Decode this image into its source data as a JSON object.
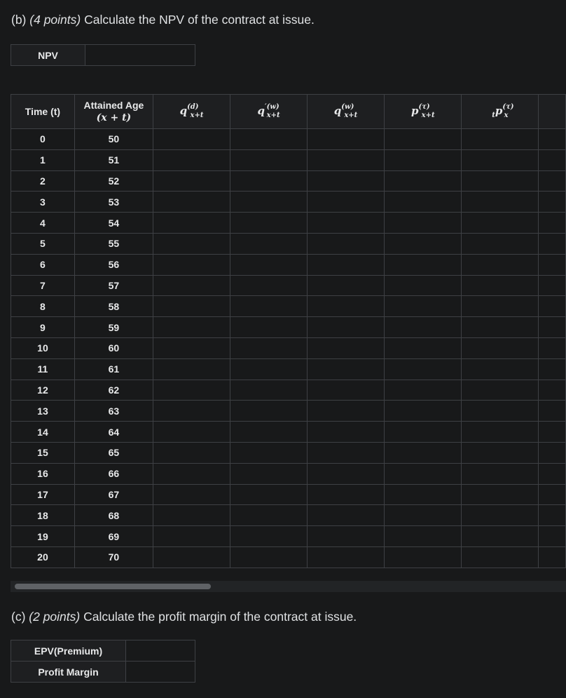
{
  "part_b": {
    "label": "(b)",
    "points": "(4 points)",
    "text": "Calculate the NPV of the contract at issue."
  },
  "npv_table": {
    "header": "NPV",
    "value": ""
  },
  "main_table": {
    "headers": {
      "time_label": "Time (t)",
      "age_line1": "Attained Age",
      "age_line2": "(x + t)",
      "col3": {
        "base": "q",
        "sup": "(d)",
        "sub": "x+t"
      },
      "col4": {
        "base": "q",
        "sup": "′(w)",
        "sub": "x+t"
      },
      "col5": {
        "base": "q",
        "sup": "(w)",
        "sub": "x+t"
      },
      "col6": {
        "base": "p",
        "sup": "(τ)",
        "sub": "x+t"
      },
      "col7": {
        "pre": "t",
        "base": "p",
        "sup": "(τ)",
        "sub": "x"
      }
    },
    "rows": [
      {
        "t": "0",
        "age": "50"
      },
      {
        "t": "1",
        "age": "51"
      },
      {
        "t": "2",
        "age": "52"
      },
      {
        "t": "3",
        "age": "53"
      },
      {
        "t": "4",
        "age": "54"
      },
      {
        "t": "5",
        "age": "55"
      },
      {
        "t": "6",
        "age": "56"
      },
      {
        "t": "7",
        "age": "57"
      },
      {
        "t": "8",
        "age": "58"
      },
      {
        "t": "9",
        "age": "59"
      },
      {
        "t": "10",
        "age": "60"
      },
      {
        "t": "11",
        "age": "61"
      },
      {
        "t": "12",
        "age": "62"
      },
      {
        "t": "13",
        "age": "63"
      },
      {
        "t": "14",
        "age": "64"
      },
      {
        "t": "15",
        "age": "65"
      },
      {
        "t": "16",
        "age": "66"
      },
      {
        "t": "17",
        "age": "67"
      },
      {
        "t": "18",
        "age": "68"
      },
      {
        "t": "19",
        "age": "69"
      },
      {
        "t": "20",
        "age": "70"
      }
    ]
  },
  "part_c": {
    "label": "(c)",
    "points": "(2 points)",
    "text": "Calculate the profit margin of the contract at issue."
  },
  "profit_table": {
    "row1_label": "EPV(Premium)",
    "row2_label": "Profit Margin"
  }
}
